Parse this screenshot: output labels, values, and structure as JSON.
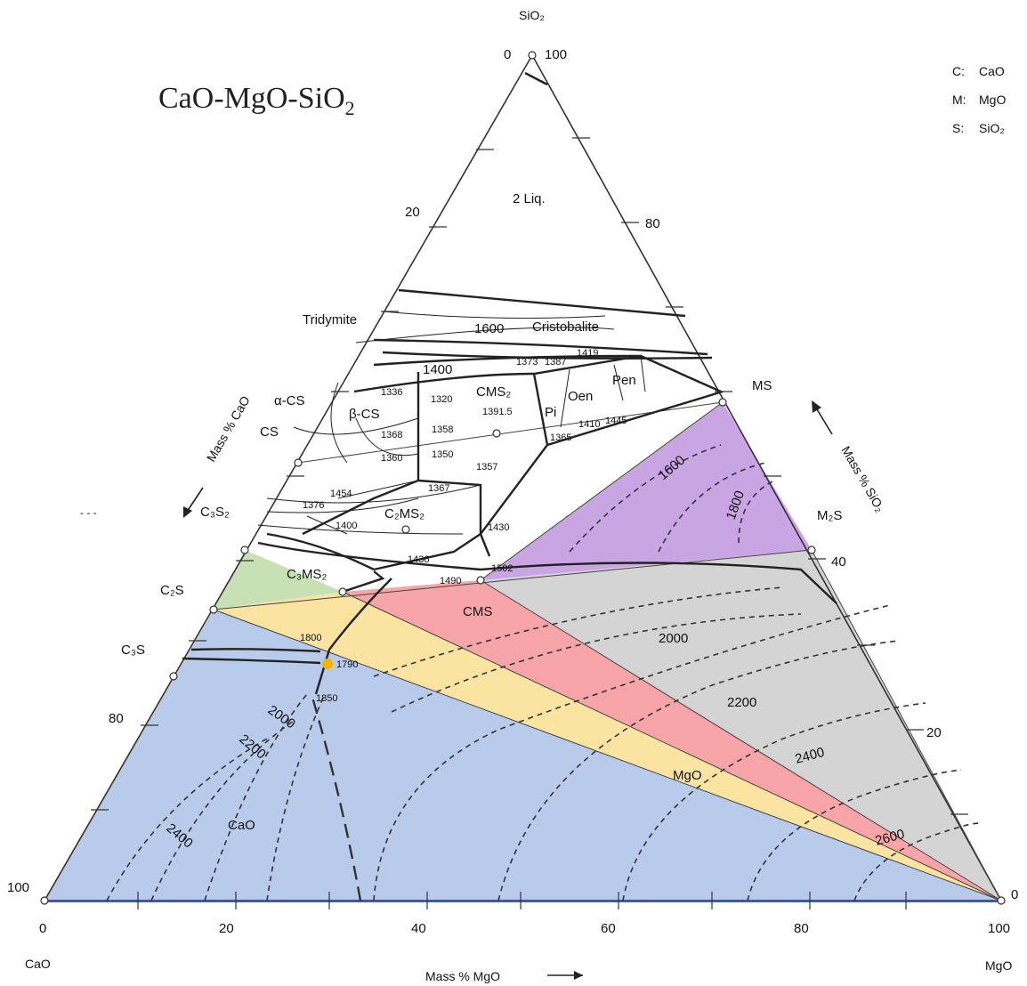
{
  "title": {
    "main": "CaO-MgO-SiO",
    "sub": "2"
  },
  "legend": [
    {
      "key": "C:",
      "value": "CaO"
    },
    {
      "key": "M:",
      "value": "MgO"
    },
    {
      "key": "S:",
      "value": "SiO₂"
    }
  ],
  "vertices": {
    "top": "SiO₂",
    "left": "CaO",
    "right": "MgO"
  },
  "axes": {
    "bottom": "Mass %  MgO",
    "left": "Mass %  CaO",
    "right": "Mass %  SiO₂"
  },
  "ticks": {
    "bottom": [
      "0",
      "20",
      "40",
      "60",
      "80",
      "100"
    ],
    "left": [
      "100",
      "80",
      "20",
      "0"
    ],
    "right": [
      "100",
      "80",
      "40",
      "20",
      "0"
    ]
  },
  "regions": {
    "two_liquid": "2 Liq.",
    "tridymite": "Tridymite",
    "cristobalite": "Cristobalite",
    "alpha_cs": "α-CS",
    "beta_cs": "β-CS",
    "cs": "CS",
    "cms2": "CMS₂",
    "pi": "Pi",
    "oen": "Oen",
    "pen": "Pen",
    "ms": "MS",
    "c3s2": "C₃S₂",
    "c2ms2": "C₂MS₂",
    "c3ms2": "C₃MS₂",
    "c2s": "C₂S",
    "c3s": "C₃S",
    "m2s": "M₂S",
    "cms": "CMS",
    "mgo": "MgO",
    "cao": "CaO"
  },
  "isotherms": [
    "1600",
    "1400",
    "1800",
    "2000",
    "2200",
    "2400",
    "2600",
    "1600",
    "1800",
    "2000",
    "2200",
    "2400"
  ],
  "invariant_points": [
    "1373",
    "1387",
    "1419",
    "1336",
    "1320",
    "1391.5",
    "1410",
    "1445",
    "1365",
    "1368",
    "1358",
    "1360",
    "1350",
    "1357",
    "1454",
    "1367",
    "1376",
    "1400",
    "1430",
    "1436",
    "1490",
    "1502",
    "1800",
    "1790",
    "1850"
  ],
  "colors": {
    "purple": "#c9a6e3",
    "grey": "#d4d4d4",
    "red": "#f7a5a8",
    "yellow": "#fbe3a1",
    "green": "#c8e1b4",
    "blue": "#b9cbea",
    "orange_point": "#f5b400"
  }
}
